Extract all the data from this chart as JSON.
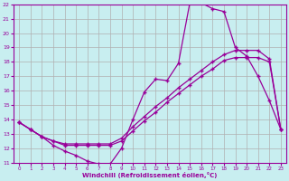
{
  "bg_color": "#c8eef0",
  "line_color": "#990099",
  "grid_color": "#b0b0b0",
  "xlabel": "Windchill (Refroidissement éolien,°C)",
  "xlim": [
    -0.5,
    23.5
  ],
  "ylim": [
    11,
    22
  ],
  "xticks": [
    0,
    1,
    2,
    3,
    4,
    5,
    6,
    7,
    8,
    9,
    10,
    11,
    12,
    13,
    14,
    15,
    16,
    17,
    18,
    19,
    20,
    21,
    22,
    23
  ],
  "yticks": [
    11,
    12,
    13,
    14,
    15,
    16,
    17,
    18,
    19,
    20,
    21,
    22
  ],
  "line1_x": [
    0,
    1,
    2,
    3,
    4,
    5,
    6,
    7,
    8,
    9,
    10,
    11,
    12,
    13,
    14,
    15,
    16,
    17,
    18,
    19,
    20,
    21,
    22,
    23
  ],
  "line1_y": [
    13.8,
    13.3,
    12.8,
    12.2,
    11.8,
    11.5,
    11.1,
    10.9,
    10.9,
    12.0,
    14.0,
    15.9,
    16.8,
    16.7,
    17.9,
    22.1,
    22.1,
    21.7,
    21.5,
    19.0,
    18.4,
    17.0,
    15.3,
    13.3
  ],
  "line2_x": [
    0,
    1,
    2,
    3,
    4,
    5,
    6,
    7,
    8,
    9,
    10,
    11,
    12,
    13,
    14,
    15,
    16,
    17,
    18,
    19,
    20,
    21,
    22,
    23
  ],
  "line2_y": [
    13.8,
    13.3,
    12.8,
    12.5,
    12.2,
    12.2,
    12.2,
    12.2,
    12.2,
    12.5,
    13.2,
    13.9,
    14.5,
    15.2,
    15.8,
    16.4,
    17.0,
    17.5,
    18.1,
    18.3,
    18.3,
    18.3,
    18.0,
    13.3
  ],
  "line3_x": [
    0,
    1,
    2,
    3,
    4,
    5,
    6,
    7,
    8,
    9,
    10,
    11,
    12,
    13,
    14,
    15,
    16,
    17,
    18,
    19,
    20,
    21,
    22,
    23
  ],
  "line3_y": [
    13.8,
    13.3,
    12.8,
    12.5,
    12.3,
    12.3,
    12.3,
    12.3,
    12.3,
    12.7,
    13.5,
    14.2,
    14.9,
    15.5,
    16.2,
    16.8,
    17.4,
    18.0,
    18.5,
    18.8,
    18.8,
    18.8,
    18.2,
    13.3
  ]
}
